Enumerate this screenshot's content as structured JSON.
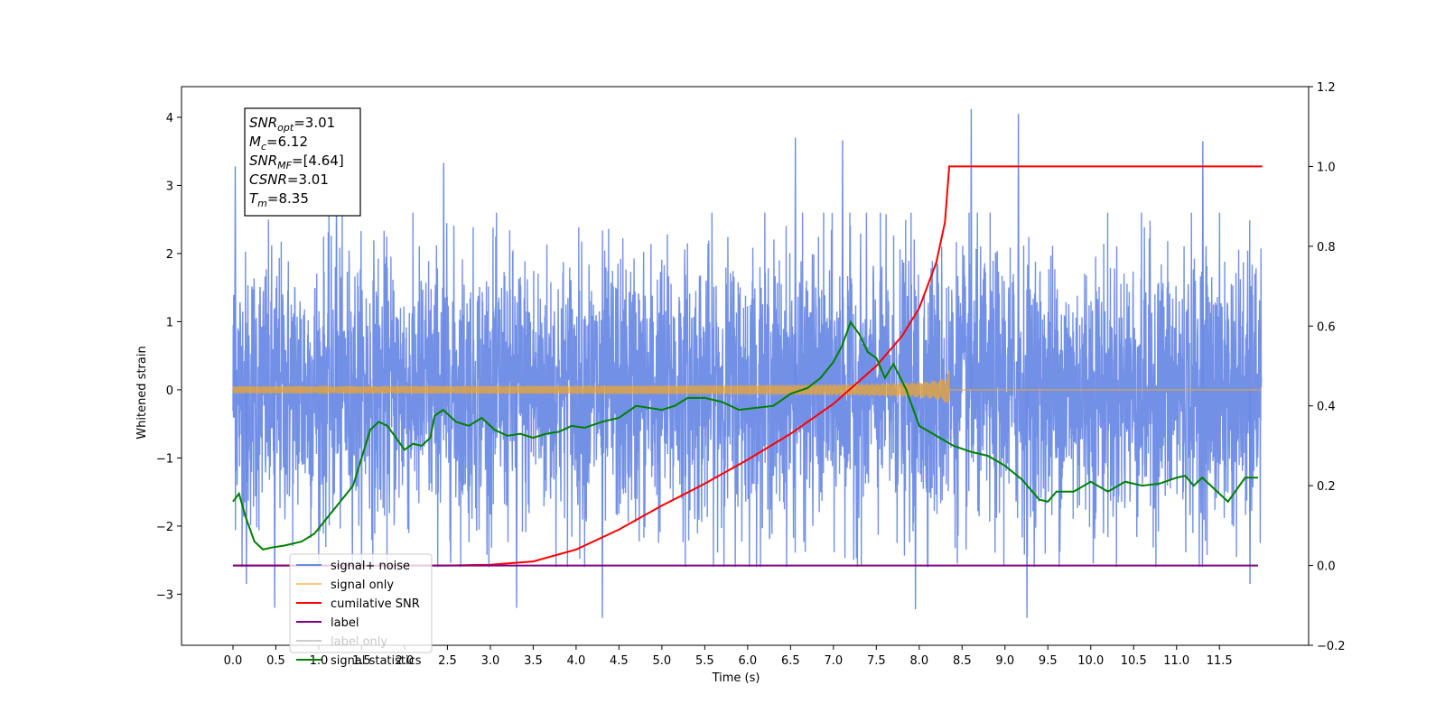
{
  "chart_data": {
    "type": "line",
    "xlabel": "Time (s)",
    "ylabel": "Whitened strain",
    "xlim": [
      -0.6,
      12.54
    ],
    "ylim": [
      -3.75,
      4.45
    ],
    "y2lim": [
      -0.2,
      1.2
    ],
    "x_ticks": [
      "0.0",
      "0.5",
      "1.0",
      "1.5",
      "2.0",
      "2.5",
      "3.0",
      "3.5",
      "4.0",
      "4.5",
      "5.0",
      "5.5",
      "6.0",
      "6.5",
      "7.0",
      "7.5",
      "8.0",
      "8.5",
      "9.0",
      "9.5",
      "10.0",
      "10.5",
      "11.0",
      "11.5"
    ],
    "y_ticks": [
      "−3",
      "−2",
      "−1",
      "0",
      "1",
      "2",
      "3",
      "4"
    ],
    "y2_ticks": [
      "−0.2",
      "0.0",
      "0.2",
      "0.4",
      "0.6",
      "0.8",
      "1.0",
      "1.2"
    ],
    "grid": false,
    "legend_position": "lower-left",
    "annotation": {
      "lines": [
        {
          "base": "SNR",
          "sub": "opt",
          "value": "=3.01"
        },
        {
          "base": "M",
          "sub": "c",
          "value": "=6.12"
        },
        {
          "base": "SNR",
          "sub": "MF",
          "value": "=[4.64]"
        },
        {
          "base": "CSNR",
          "sub": "",
          "value": "=3.01"
        },
        {
          "base": "T",
          "sub": "m",
          "value": "=8.35"
        }
      ]
    },
    "series": [
      {
        "name": "signal+ noise",
        "color": "#6b8ae6",
        "axis": "left",
        "style": "noise",
        "x_range": [
          0.0,
          11.99
        ],
        "typical_std": 1.0,
        "extremes": [
          {
            "x": 0.02,
            "y": 3.28
          },
          {
            "x": 0.15,
            "y": -2.85
          },
          {
            "x": 0.48,
            "y": -3.2
          },
          {
            "x": 1.2,
            "y": 3.0
          },
          {
            "x": 2.45,
            "y": 3.33
          },
          {
            "x": 3.3,
            "y": -3.2
          },
          {
            "x": 4.3,
            "y": -3.35
          },
          {
            "x": 6.55,
            "y": 3.7
          },
          {
            "x": 7.1,
            "y": 3.66
          },
          {
            "x": 7.95,
            "y": -3.22
          },
          {
            "x": 8.6,
            "y": 4.12
          },
          {
            "x": 9.15,
            "y": 4.05
          },
          {
            "x": 9.25,
            "y": -3.35
          },
          {
            "x": 11.3,
            "y": 3.65
          },
          {
            "x": 11.85,
            "y": -2.85
          }
        ]
      },
      {
        "name": "signal only",
        "color": "#f5a623",
        "axis": "left",
        "style": "chirp",
        "x_range": [
          0.0,
          11.99
        ],
        "merger_time": 8.35,
        "peak_amplitude": 0.35
      },
      {
        "name": "cumilative SNR",
        "color": "#ff0000",
        "axis": "right",
        "x": [
          0.0,
          2.5,
          3.0,
          3.5,
          4.0,
          4.5,
          5.0,
          5.5,
          6.0,
          6.5,
          7.0,
          7.5,
          7.8,
          8.0,
          8.2,
          8.3,
          8.35,
          8.36,
          12.0
        ],
        "values": [
          0.0,
          0.0,
          0.002,
          0.01,
          0.04,
          0.09,
          0.15,
          0.205,
          0.265,
          0.33,
          0.405,
          0.5,
          0.575,
          0.645,
          0.76,
          0.86,
          1.0,
          1.0,
          1.0
        ]
      },
      {
        "name": "label",
        "color": "#800080",
        "axis": "right",
        "x": [
          0.0,
          11.95
        ],
        "values": [
          0.0,
          0.0
        ]
      },
      {
        "name": "label only",
        "color": "#cccccc",
        "axis": "right",
        "hidden": true,
        "x": [],
        "values": []
      },
      {
        "name": "signal statistics",
        "color": "#008000",
        "axis": "right",
        "x": [
          0.0,
          0.07,
          0.15,
          0.25,
          0.35,
          0.45,
          0.6,
          0.8,
          0.95,
          1.1,
          1.25,
          1.4,
          1.5,
          1.6,
          1.7,
          1.8,
          1.9,
          2.0,
          2.1,
          2.2,
          2.3,
          2.35,
          2.45,
          2.6,
          2.75,
          2.9,
          3.05,
          3.2,
          3.35,
          3.5,
          3.65,
          3.8,
          3.95,
          4.1,
          4.3,
          4.5,
          4.7,
          4.85,
          5.0,
          5.15,
          5.3,
          5.5,
          5.7,
          5.9,
          6.1,
          6.3,
          6.5,
          6.7,
          6.85,
          7.0,
          7.1,
          7.2,
          7.3,
          7.4,
          7.5,
          7.6,
          7.7,
          7.85,
          8.0,
          8.2,
          8.4,
          8.6,
          8.8,
          9.0,
          9.2,
          9.4,
          9.5,
          9.6,
          9.8,
          10.0,
          10.2,
          10.4,
          10.6,
          10.8,
          11.0,
          11.1,
          11.2,
          11.3,
          11.4,
          11.6,
          11.8,
          11.95
        ],
        "values": [
          0.16,
          0.18,
          0.12,
          0.06,
          0.04,
          0.045,
          0.05,
          0.06,
          0.08,
          0.12,
          0.16,
          0.2,
          0.27,
          0.34,
          0.36,
          0.35,
          0.32,
          0.29,
          0.305,
          0.3,
          0.32,
          0.375,
          0.39,
          0.36,
          0.35,
          0.37,
          0.34,
          0.325,
          0.33,
          0.32,
          0.33,
          0.335,
          0.35,
          0.345,
          0.36,
          0.37,
          0.4,
          0.395,
          0.39,
          0.4,
          0.42,
          0.42,
          0.41,
          0.39,
          0.395,
          0.4,
          0.43,
          0.445,
          0.47,
          0.51,
          0.55,
          0.61,
          0.58,
          0.535,
          0.52,
          0.47,
          0.505,
          0.44,
          0.35,
          0.325,
          0.3,
          0.285,
          0.275,
          0.25,
          0.215,
          0.165,
          0.16,
          0.185,
          0.185,
          0.21,
          0.185,
          0.21,
          0.2,
          0.205,
          0.22,
          0.225,
          0.2,
          0.22,
          0.2,
          0.16,
          0.22,
          0.22
        ]
      }
    ]
  }
}
